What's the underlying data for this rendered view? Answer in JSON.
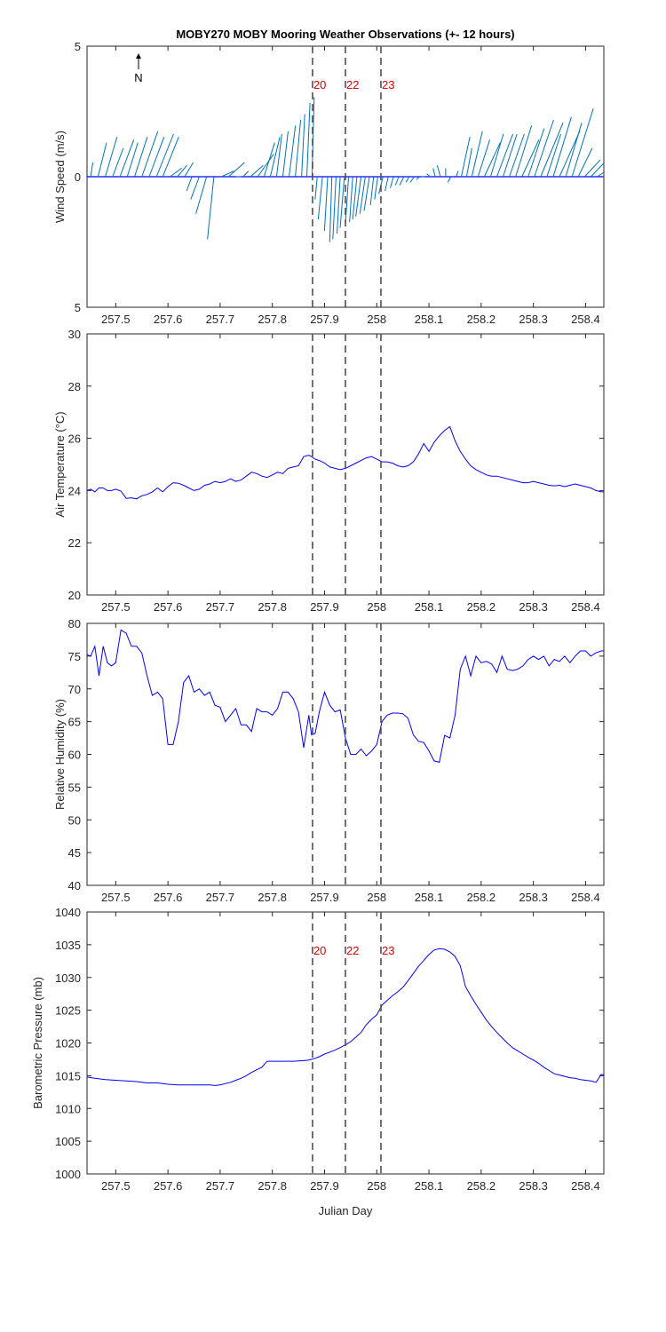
{
  "figure": {
    "title": "MOBY270 MOBY Mooring Weather Observations (+- 12 hours)",
    "north_label": "N",
    "xlabel": "Julian Day",
    "x_range": [
      257.445,
      258.435
    ],
    "x_ticks": [
      257.5,
      257.6,
      257.7,
      257.8,
      257.9,
      258.0,
      258.1,
      258.2,
      258.3,
      258.4
    ],
    "x_tick_labels": [
      "257.5",
      "257.6",
      "257.7",
      "257.8",
      "257.9",
      "258",
      "258.1",
      "258.2",
      "258.3",
      "258.4"
    ],
    "event_lines": [
      257.877,
      257.94,
      258.008
    ],
    "event_labels": [
      "20",
      "22",
      "23"
    ],
    "colors": {
      "series": "#0000ff",
      "wind": "#0072bd",
      "event_line": "#505050",
      "event_label": "#e00000",
      "axis": "#262626"
    }
  },
  "chart_data": [
    {
      "type": "line",
      "subtype": "wind-vector (stick plot)",
      "ylabel": "Wind Speed (m/s)",
      "ylim": [
        -5,
        5
      ],
      "y_ticks": [
        -5,
        0,
        5
      ],
      "y_tick_labels": [
        "5",
        "0",
        "5"
      ],
      "event_labels_shown": true,
      "series": [
        {
          "name": "wind",
          "x": [
            257.452,
            257.466,
            257.48,
            257.494,
            257.508,
            257.522,
            257.536,
            257.55,
            257.564,
            257.578,
            257.59,
            257.604,
            257.618,
            257.632,
            257.646,
            257.66,
            257.674,
            257.688,
            257.702,
            257.716,
            257.73,
            257.744,
            257.758,
            257.772,
            257.784,
            257.796,
            257.808,
            257.82,
            257.832,
            257.844,
            257.856,
            257.866,
            257.876,
            257.886,
            257.896,
            257.906,
            257.914,
            257.922,
            257.93,
            257.938,
            257.946,
            257.954,
            257.962,
            257.97,
            257.978,
            257.986,
            257.994,
            258.002,
            258.012,
            258.022,
            258.032,
            258.042,
            258.052,
            258.062,
            258.072,
            258.082,
            258.092,
            258.102,
            258.112,
            258.122,
            258.132,
            258.142,
            258.152,
            258.162,
            258.172,
            258.182,
            258.194,
            258.206,
            258.218,
            258.23,
            258.242,
            258.254,
            258.266,
            258.278,
            258.29,
            258.302,
            258.314,
            258.326,
            258.338,
            258.35,
            258.362,
            258.374,
            258.386,
            258.398,
            258.41,
            258.422,
            258.434
          ],
          "u": [
            0.2,
            0.8,
            1.1,
            1.0,
            1.3,
            1.0,
            1.2,
            1.5,
            1.4,
            1.6,
            1.5,
            1.1,
            0.9,
            0.8,
            -0.5,
            -0.8,
            -1.0,
            -0.6,
            1.2,
            1.5,
            0.5,
            0.5,
            1.2,
            1.5,
            1.0,
            0.9,
            0.5,
            0.5,
            0.6,
            0.5,
            0.3,
            0.3,
            0.2,
            -0.2,
            -0.4,
            -0.3,
            -0.2,
            -0.3,
            -0.3,
            -0.4,
            -0.3,
            -0.3,
            -0.4,
            -0.5,
            -0.5,
            -0.5,
            -0.3,
            -0.3,
            -0.4,
            -0.3,
            -0.3,
            -0.3,
            -0.4,
            -0.3,
            -0.4,
            -0.3,
            -0.3,
            -0.3,
            -0.2,
            -0.3,
            0.0,
            -0.3,
            0.2,
            0.8,
            0.5,
            1.0,
            1.1,
            1.5,
            1.2,
            1.5,
            1.3,
            1.4,
            1.5,
            1.6,
            1.5,
            1.8,
            2.1,
            1.3,
            1.7,
            1.9,
            1.5,
            2.0,
            1.3,
            1.5,
            1.8,
            1.7,
            1.9
          ],
          "v": [
            0.5,
            1.2,
            1.4,
            1.0,
            1.3,
            1.2,
            1.4,
            1.6,
            1.4,
            1.5,
            1.4,
            0.3,
            0.4,
            0.5,
            -0.5,
            -0.8,
            -1.3,
            -2.2,
            0.2,
            0.5,
            0.0,
            0.2,
            0.4,
            0.8,
            1.2,
            1.4,
            1.5,
            1.6,
            1.8,
            2.0,
            2.2,
            2.6,
            2.8,
            -0.8,
            -1.5,
            -1.9,
            -2.3,
            -2.2,
            -2.0,
            -1.8,
            -1.7,
            -1.6,
            -1.5,
            -1.4,
            -1.3,
            -1.2,
            -1.0,
            -0.8,
            -0.6,
            -0.5,
            -0.4,
            -0.3,
            -0.3,
            -0.2,
            -0.2,
            -0.1,
            0.0,
            0.1,
            0.3,
            0.4,
            0.3,
            -0.2,
            0.2,
            1.4,
            1.0,
            1.6,
            1.3,
            1.2,
            1.5,
            1.5,
            1.5,
            1.5,
            1.8,
            1.3,
            1.7,
            2.0,
            1.9,
            1.5,
            2.1,
            1.6,
            1.9,
            2.4,
            1.0,
            0.6,
            0.7,
            0.4,
            0.3
          ]
        }
      ]
    },
    {
      "type": "line",
      "ylabel": "Air Temperature (°C)",
      "ylim": [
        20,
        30
      ],
      "y_ticks": [
        20,
        22,
        24,
        26,
        28,
        30
      ],
      "y_tick_labels": [
        "20",
        "22",
        "24",
        "26",
        "28",
        "30"
      ],
      "series": [
        {
          "x": [
            257.445,
            257.452,
            257.46,
            257.468,
            257.476,
            257.484,
            257.492,
            257.5,
            257.51,
            257.52,
            257.53,
            257.54,
            257.55,
            257.56,
            257.57,
            257.58,
            257.59,
            257.6,
            257.61,
            257.62,
            257.63,
            257.64,
            257.65,
            257.66,
            257.67,
            257.68,
            257.69,
            257.7,
            257.71,
            257.72,
            257.73,
            257.74,
            257.75,
            257.76,
            257.77,
            257.78,
            257.79,
            257.8,
            257.81,
            257.82,
            257.83,
            257.84,
            257.85,
            257.86,
            257.87,
            257.875,
            257.882,
            257.89,
            257.9,
            257.91,
            257.92,
            257.93,
            257.94,
            257.95,
            257.96,
            257.97,
            257.98,
            257.99,
            258.0,
            258.01,
            258.02,
            258.03,
            258.04,
            258.05,
            258.06,
            258.07,
            258.08,
            258.09,
            258.1,
            258.11,
            258.12,
            258.13,
            258.14,
            258.15,
            258.16,
            258.17,
            258.18,
            258.19,
            258.2,
            258.21,
            258.22,
            258.23,
            258.24,
            258.25,
            258.26,
            258.27,
            258.28,
            258.29,
            258.3,
            258.31,
            258.32,
            258.33,
            258.34,
            258.35,
            258.36,
            258.37,
            258.38,
            258.39,
            258.4,
            258.41,
            258.42,
            258.43,
            258.435
          ],
          "y": [
            24.0,
            24.05,
            23.95,
            24.1,
            24.1,
            24.0,
            24.0,
            24.05,
            23.98,
            23.7,
            23.72,
            23.68,
            23.8,
            23.85,
            23.95,
            24.1,
            23.95,
            24.15,
            24.3,
            24.28,
            24.2,
            24.1,
            24.0,
            24.05,
            24.2,
            24.25,
            24.35,
            24.3,
            24.35,
            24.45,
            24.35,
            24.4,
            24.55,
            24.7,
            24.65,
            24.55,
            24.5,
            24.6,
            24.7,
            24.65,
            24.85,
            24.9,
            24.95,
            25.3,
            25.35,
            25.3,
            25.2,
            25.15,
            25.05,
            24.9,
            24.85,
            24.8,
            24.85,
            24.95,
            25.05,
            25.15,
            25.25,
            25.3,
            25.2,
            25.1,
            25.1,
            25.05,
            24.95,
            24.9,
            24.95,
            25.1,
            25.4,
            25.8,
            25.5,
            25.85,
            26.1,
            26.3,
            26.45,
            25.9,
            25.5,
            25.2,
            24.95,
            24.8,
            24.7,
            24.6,
            24.55,
            24.55,
            24.5,
            24.45,
            24.4,
            24.35,
            24.3,
            24.3,
            24.35,
            24.3,
            24.25,
            24.2,
            24.18,
            24.2,
            24.15,
            24.2,
            24.25,
            24.2,
            24.15,
            24.1,
            24.0,
            23.95,
            23.95
          ]
        }
      ]
    },
    {
      "type": "line",
      "ylabel": "Relative Humidity (%)",
      "ylim": [
        40,
        80
      ],
      "y_ticks": [
        40,
        45,
        50,
        55,
        60,
        65,
        70,
        75,
        80
      ],
      "y_tick_labels": [
        "40",
        "45",
        "50",
        "55",
        "60",
        "65",
        "70",
        "75",
        "80"
      ],
      "series": [
        {
          "x": [
            257.445,
            257.452,
            257.46,
            257.468,
            257.476,
            257.484,
            257.492,
            257.5,
            257.51,
            257.52,
            257.53,
            257.54,
            257.55,
            257.56,
            257.57,
            257.58,
            257.59,
            257.6,
            257.61,
            257.62,
            257.63,
            257.64,
            257.65,
            257.66,
            257.67,
            257.68,
            257.69,
            257.7,
            257.71,
            257.72,
            257.73,
            257.74,
            257.75,
            257.76,
            257.77,
            257.78,
            257.79,
            257.8,
            257.81,
            257.82,
            257.83,
            257.84,
            257.85,
            257.86,
            257.87,
            257.875,
            257.882,
            257.89,
            257.9,
            257.91,
            257.92,
            257.93,
            257.94,
            257.95,
            257.96,
            257.97,
            257.98,
            257.99,
            258.0,
            258.01,
            258.02,
            258.03,
            258.04,
            258.05,
            258.06,
            258.07,
            258.08,
            258.09,
            258.1,
            258.11,
            258.12,
            258.13,
            258.14,
            258.15,
            258.16,
            258.17,
            258.18,
            258.19,
            258.2,
            258.21,
            258.22,
            258.23,
            258.24,
            258.25,
            258.26,
            258.27,
            258.28,
            258.29,
            258.3,
            258.31,
            258.32,
            258.33,
            258.34,
            258.35,
            258.36,
            258.37,
            258.38,
            258.39,
            258.4,
            258.41,
            258.42,
            258.43,
            258.435
          ],
          "y": [
            75.2,
            75.0,
            76.5,
            72.0,
            76.5,
            74.0,
            73.5,
            74.0,
            79.0,
            78.5,
            76.5,
            76.5,
            75.5,
            72.0,
            69.0,
            69.5,
            68.5,
            61.5,
            61.5,
            65.0,
            71.0,
            72.0,
            69.5,
            70.0,
            69.0,
            69.5,
            67.5,
            67.2,
            65.0,
            66.0,
            67.0,
            64.5,
            64.5,
            63.5,
            67.0,
            66.5,
            66.5,
            66.0,
            67.0,
            69.5,
            69.5,
            68.5,
            66.5,
            61.0,
            66.0,
            63.0,
            63.2,
            66.5,
            69.5,
            67.5,
            66.5,
            66.8,
            62.5,
            60.0,
            60.0,
            60.8,
            59.8,
            60.5,
            61.5,
            65.0,
            66.0,
            66.3,
            66.3,
            66.2,
            65.5,
            63.0,
            62.0,
            61.8,
            60.5,
            59.0,
            58.8,
            62.9,
            62.5,
            66.0,
            73.0,
            75.0,
            72.0,
            75.0,
            74.0,
            74.2,
            73.8,
            72.5,
            75.0,
            73.0,
            72.8,
            73.0,
            73.5,
            74.5,
            75.0,
            74.5,
            75.0,
            73.5,
            74.5,
            74.2,
            75.0,
            74.0,
            75.0,
            75.8,
            75.8,
            75.0,
            75.5,
            75.8,
            75.8
          ]
        }
      ]
    },
    {
      "type": "line",
      "ylabel": "Barometric Pressure (mb)",
      "xlabel": "Julian Day",
      "ylim": [
        1000,
        1040
      ],
      "y_ticks": [
        1000,
        1005,
        1010,
        1015,
        1020,
        1025,
        1030,
        1035,
        1040
      ],
      "y_tick_labels": [
        "1000",
        "1005",
        "1010",
        "1015",
        "1020",
        "1025",
        "1030",
        "1035",
        "1040"
      ],
      "event_labels_shown": true,
      "series": [
        {
          "x": [
            257.445,
            257.46,
            257.48,
            257.5,
            257.52,
            257.54,
            257.56,
            257.58,
            257.6,
            257.62,
            257.64,
            257.66,
            257.68,
            257.69,
            257.7,
            257.71,
            257.72,
            257.73,
            257.74,
            257.75,
            257.76,
            257.77,
            257.78,
            257.79,
            257.8,
            257.805,
            257.82,
            257.84,
            257.86,
            257.87,
            257.88,
            257.89,
            257.9,
            257.91,
            257.92,
            257.93,
            257.94,
            257.95,
            257.96,
            257.97,
            257.98,
            257.99,
            258.0,
            258.005,
            258.01,
            258.02,
            258.03,
            258.04,
            258.05,
            258.06,
            258.07,
            258.08,
            258.09,
            258.1,
            258.11,
            258.12,
            258.13,
            258.14,
            258.15,
            258.16,
            258.165,
            258.17,
            258.18,
            258.19,
            258.2,
            258.21,
            258.22,
            258.23,
            258.24,
            258.25,
            258.26,
            258.27,
            258.28,
            258.29,
            258.3,
            258.31,
            258.32,
            258.33,
            258.34,
            258.35,
            258.36,
            258.37,
            258.38,
            258.39,
            258.4,
            258.41,
            258.42,
            258.43,
            258.435
          ],
          "y": [
            1014.8,
            1014.6,
            1014.4,
            1014.3,
            1014.2,
            1014.1,
            1013.9,
            1013.9,
            1013.7,
            1013.6,
            1013.6,
            1013.6,
            1013.6,
            1013.5,
            1013.6,
            1013.8,
            1014.0,
            1014.3,
            1014.6,
            1015.0,
            1015.5,
            1015.9,
            1016.3,
            1017.2,
            1017.2,
            1017.2,
            1017.2,
            1017.2,
            1017.3,
            1017.4,
            1017.6,
            1017.9,
            1018.3,
            1018.6,
            1018.9,
            1019.3,
            1019.7,
            1020.2,
            1020.9,
            1021.6,
            1022.8,
            1023.6,
            1024.3,
            1025.0,
            1025.8,
            1026.5,
            1027.2,
            1027.8,
            1028.5,
            1029.5,
            1030.6,
            1031.7,
            1032.6,
            1033.5,
            1034.2,
            1034.4,
            1034.3,
            1033.9,
            1033.2,
            1031.8,
            1030.2,
            1028.6,
            1027.2,
            1025.9,
            1024.7,
            1023.5,
            1022.5,
            1021.6,
            1020.8,
            1020.0,
            1019.3,
            1018.8,
            1018.3,
            1017.8,
            1017.4,
            1016.9,
            1016.3,
            1015.8,
            1015.3,
            1015.1,
            1014.9,
            1014.7,
            1014.6,
            1014.4,
            1014.3,
            1014.2,
            1014.0,
            1015.2,
            1015.1
          ]
        }
      ]
    }
  ]
}
